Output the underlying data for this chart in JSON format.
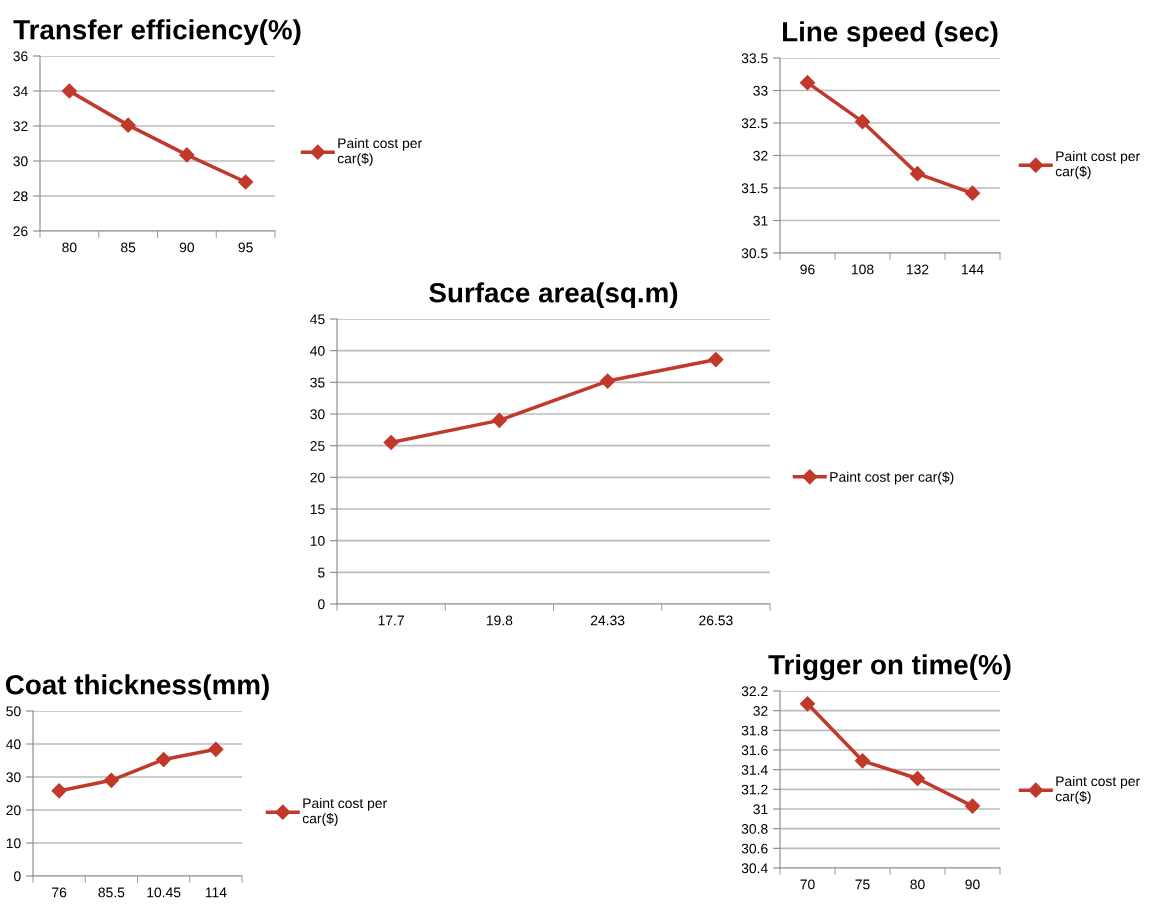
{
  "chart_data": [
    {
      "type": "line",
      "title": "Transfer efficiency(%)",
      "categories": [
        "80",
        "85",
        "90",
        "95"
      ],
      "series": [
        {
          "name": "Paint cost per car($)",
          "color": "#c0392b",
          "values": [
            34,
            32.05,
            30.35,
            28.8
          ]
        }
      ],
      "ylim": [
        26,
        36
      ],
      "yticks": [
        26,
        28,
        30,
        32,
        34,
        36
      ],
      "grid": "y",
      "legend": "right",
      "marker": "diamond",
      "line_style": "solid"
    },
    {
      "type": "line",
      "title": "Line speed (sec)",
      "categories": [
        "96",
        "108",
        "132",
        "144"
      ],
      "series": [
        {
          "name": "Paint cost per car($)",
          "color": "#c0392b",
          "values": [
            33.12,
            32.52,
            31.72,
            31.42
          ]
        }
      ],
      "ylim": [
        30.5,
        33.5
      ],
      "yticks": [
        30.5,
        31,
        31.5,
        32,
        32.5,
        33,
        33.5
      ],
      "grid": "y",
      "legend": "right",
      "marker": "diamond",
      "line_style": "solid"
    },
    {
      "type": "line",
      "title": "Surface area(sq.m)",
      "categories": [
        "17.7",
        "19.8",
        "24.33",
        "26.53"
      ],
      "series": [
        {
          "name": "Paint cost per car($)",
          "color": "#c0392b",
          "values": [
            25.5,
            29,
            35.2,
            38.6
          ]
        }
      ],
      "ylim": [
        0,
        45
      ],
      "yticks": [
        0,
        5,
        10,
        15,
        20,
        25,
        30,
        35,
        40,
        45
      ],
      "grid": "y",
      "legend": "right",
      "marker": "diamond",
      "line_style": "solid"
    },
    {
      "type": "line",
      "title": "Coat thickness(mm)",
      "categories": [
        "76",
        "85.5",
        "10.45",
        "114"
      ],
      "series": [
        {
          "name": "Paint cost per car($)",
          "color": "#c0392b",
          "values": [
            25.8,
            29,
            35.3,
            38.4
          ]
        }
      ],
      "ylim": [
        0,
        50
      ],
      "yticks": [
        0,
        10,
        20,
        30,
        40,
        50
      ],
      "grid": "y",
      "legend": "right",
      "marker": "diamond",
      "line_style": "solid"
    },
    {
      "type": "line",
      "title": "Trigger on time(%)",
      "categories": [
        "70",
        "75",
        "80",
        "90"
      ],
      "series": [
        {
          "name": "Paint cost per car($)",
          "color": "#c0392b",
          "values": [
            32.07,
            31.49,
            31.31,
            31.03
          ]
        }
      ],
      "ylim": [
        30.4,
        32.2
      ],
      "yticks": [
        30.4,
        30.6,
        30.8,
        31,
        31.2,
        31.4,
        31.6,
        31.8,
        32,
        32.2
      ],
      "grid": "y",
      "legend": "right",
      "marker": "diamond",
      "line_style": "solid"
    }
  ]
}
